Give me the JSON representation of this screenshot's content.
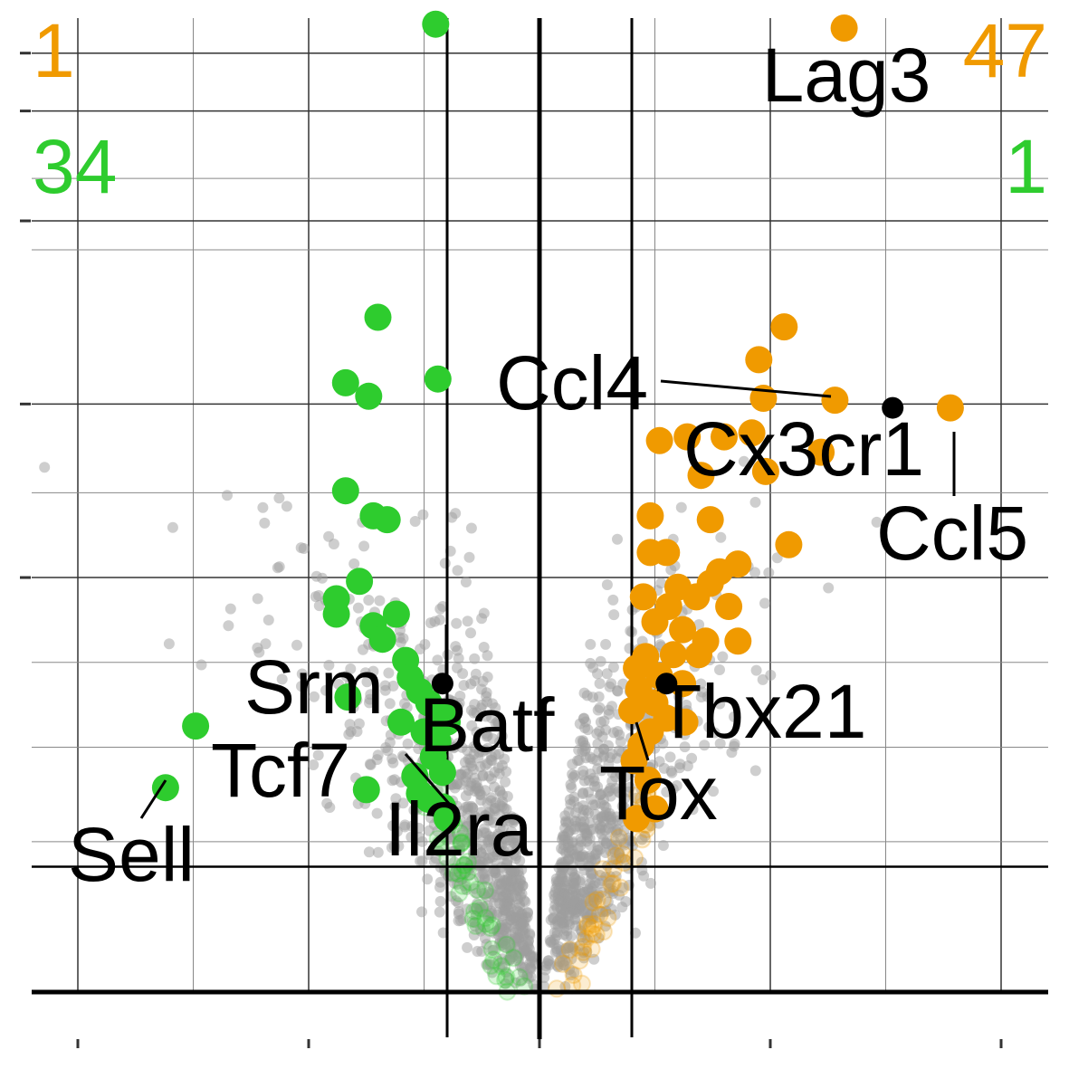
{
  "chart_data": {
    "type": "scatter",
    "title": "",
    "xlabel": "",
    "ylabel": "",
    "xlim": [
      -5.0,
      4.2
    ],
    "ylim": [
      -0.25,
      5.05
    ],
    "grid": true,
    "legend": "none",
    "thresholds": {
      "log2fc": [
        -0.4,
        0.4
      ],
      "significance": 0.65
    },
    "colors": {
      "up": "#F09A00",
      "down": "#2ECC2E",
      "nonsig": "#9E9E9E",
      "highlight": "#000000",
      "grid_major": "#333333",
      "grid_minor": "#888888"
    },
    "counts": {
      "top_left": "1",
      "top_right": "47",
      "bottom_left": "34",
      "bottom_right": "1"
    },
    "up_points": [
      [
        1.32,
        5.0
      ],
      [
        1.06,
        3.45
      ],
      [
        0.97,
        3.08
      ],
      [
        0.95,
        3.28
      ],
      [
        1.28,
        3.07
      ],
      [
        1.78,
        3.03
      ],
      [
        1.22,
        2.8
      ],
      [
        0.52,
        2.86
      ],
      [
        0.64,
        2.88
      ],
      [
        0.8,
        2.88
      ],
      [
        0.92,
        2.9
      ],
      [
        0.98,
        2.7
      ],
      [
        0.7,
        2.68
      ],
      [
        0.48,
        2.47
      ],
      [
        0.74,
        2.45
      ],
      [
        1.08,
        2.32
      ],
      [
        0.48,
        2.28
      ],
      [
        0.55,
        2.28
      ],
      [
        0.86,
        2.22
      ],
      [
        0.78,
        2.18
      ],
      [
        0.74,
        2.12
      ],
      [
        0.6,
        2.1
      ],
      [
        0.45,
        2.05
      ],
      [
        0.56,
        2.0
      ],
      [
        0.68,
        2.05
      ],
      [
        0.82,
        2.0
      ],
      [
        0.5,
        1.92
      ],
      [
        0.62,
        1.88
      ],
      [
        0.72,
        1.82
      ],
      [
        0.86,
        1.82
      ],
      [
        0.46,
        1.74
      ],
      [
        0.58,
        1.75
      ],
      [
        0.69,
        1.75
      ],
      [
        0.42,
        1.68
      ],
      [
        0.52,
        1.64
      ],
      [
        0.62,
        1.6
      ],
      [
        0.43,
        1.57
      ],
      [
        0.5,
        1.5
      ],
      [
        0.4,
        1.46
      ],
      [
        0.55,
        1.42
      ],
      [
        0.63,
        1.4
      ],
      [
        0.48,
        1.35
      ],
      [
        0.44,
        1.28
      ],
      [
        0.41,
        1.2
      ],
      [
        0.47,
        1.1
      ],
      [
        0.5,
        0.95
      ],
      [
        0.42,
        0.9
      ]
    ],
    "down_points": [
      [
        -0.45,
        5.02
      ],
      [
        -0.7,
        3.5
      ],
      [
        -0.44,
        3.18
      ],
      [
        -0.84,
        3.16
      ],
      [
        -0.74,
        3.09
      ],
      [
        -0.84,
        2.6
      ],
      [
        -0.72,
        2.47
      ],
      [
        -0.66,
        2.45
      ],
      [
        -0.78,
        2.13
      ],
      [
        -0.88,
        2.04
      ],
      [
        -0.88,
        1.96
      ],
      [
        -0.62,
        1.96
      ],
      [
        -0.72,
        1.9
      ],
      [
        -0.68,
        1.83
      ],
      [
        -0.58,
        1.72
      ],
      [
        -0.56,
        1.63
      ],
      [
        -0.52,
        1.56
      ],
      [
        -0.48,
        1.5
      ],
      [
        -0.42,
        1.44
      ],
      [
        -0.6,
        1.4
      ],
      [
        -0.5,
        1.35
      ],
      [
        -0.44,
        1.3
      ],
      [
        -0.46,
        1.22
      ],
      [
        -0.42,
        1.14
      ],
      [
        -0.54,
        1.12
      ],
      [
        -0.52,
        1.03
      ],
      [
        -0.48,
        1.0
      ],
      [
        -0.42,
        0.96
      ],
      [
        -0.4,
        1.4
      ],
      [
        -0.83,
        1.53
      ],
      [
        -0.75,
        1.05
      ],
      [
        -1.49,
        1.38
      ],
      [
        -1.62,
        1.06
      ],
      [
        -0.4,
        0.9
      ]
    ],
    "highlighted_points": [
      {
        "gene": "Lag3",
        "x": 1.32,
        "y": 5.0,
        "group": "up"
      },
      {
        "gene": "Ccl4",
        "x": 1.28,
        "y": 3.07,
        "group": "up"
      },
      {
        "gene": "Cx3cr1",
        "x": 1.53,
        "y": 3.03,
        "group": "highlight"
      },
      {
        "gene": "Ccl5",
        "x": 1.78,
        "y": 3.03,
        "group": "up"
      },
      {
        "gene": "Tbx21",
        "x": 0.55,
        "y": 1.6,
        "group": "highlight"
      },
      {
        "gene": "Tox",
        "x": 0.42,
        "y": 1.42,
        "group": "up"
      },
      {
        "gene": "Batf",
        "x": -0.42,
        "y": 1.6,
        "group": "highlight"
      },
      {
        "gene": "Srm",
        "x": -0.7,
        "y": 1.5,
        "group": "down"
      },
      {
        "gene": "Il2ra",
        "x": -0.4,
        "y": 1.2,
        "group": "down"
      },
      {
        "gene": "Tcf7",
        "x": -0.75,
        "y": 1.4,
        "group": "down"
      },
      {
        "gene": "Sell",
        "x": -1.62,
        "y": 1.06,
        "group": "down"
      }
    ],
    "labels": [
      "Lag3",
      "Ccl4",
      "Cx3cr1",
      "Ccl5",
      "Tbx21",
      "Tox",
      "Batf",
      "Srm",
      "Il2ra",
      "Tcf7",
      "Sell"
    ]
  }
}
